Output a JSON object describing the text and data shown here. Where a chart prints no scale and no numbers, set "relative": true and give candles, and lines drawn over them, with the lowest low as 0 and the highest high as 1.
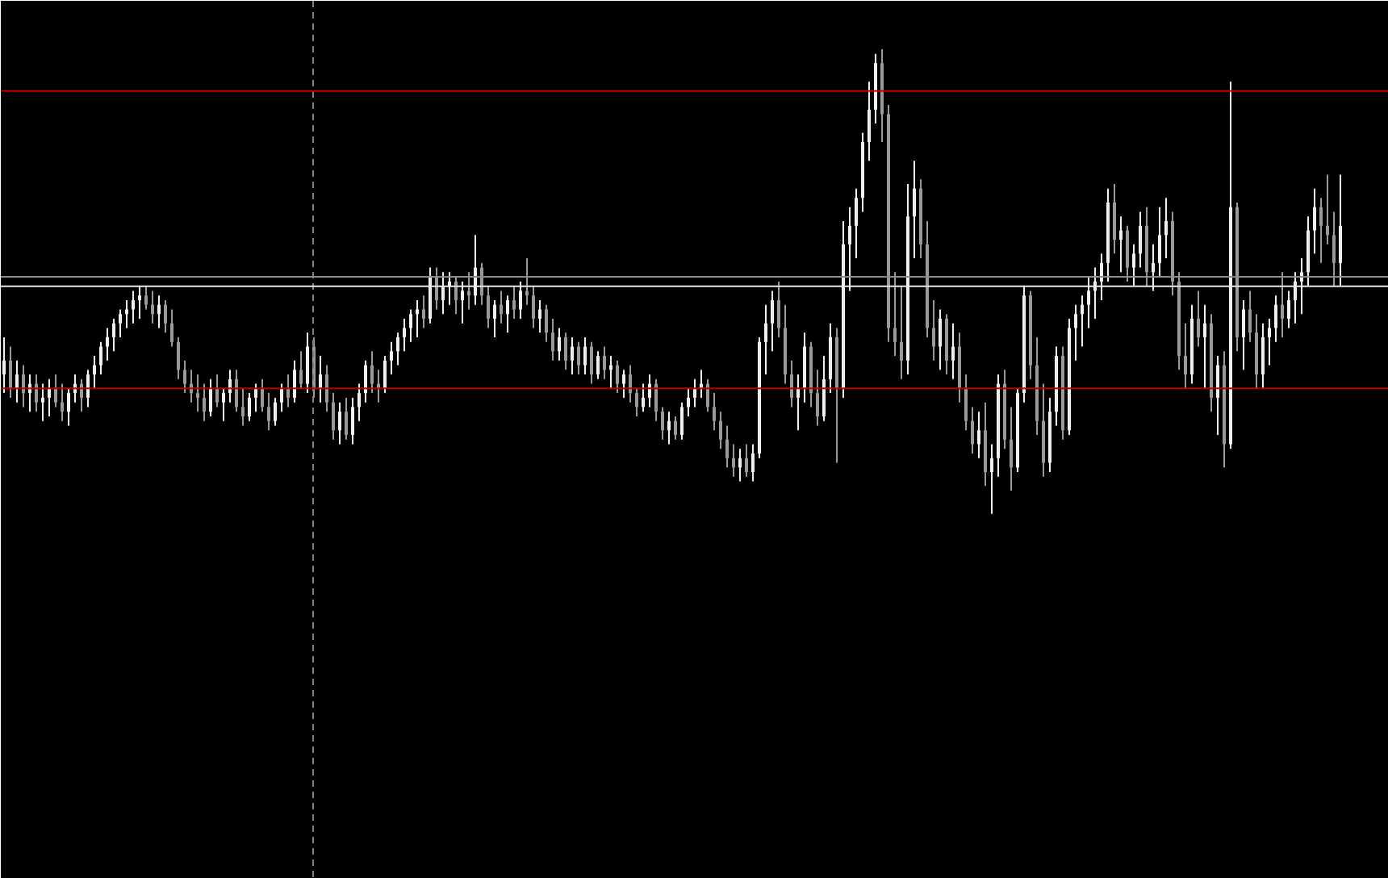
{
  "chart_data": {
    "type": "candlestick",
    "relative": true,
    "grid": false,
    "colors": [
      "#f0f0f0",
      "#9a9a9a",
      "#f0f0f0",
      "#9a9a9a",
      "#f0f0f0",
      "#9a9a9a",
      "#f0f0f0",
      "#f0f0f0",
      "#9a9a9a",
      "#9a9a9a",
      "#f0f0f0",
      "#f0f0f0",
      "#9a9a9a",
      "#f0f0f0",
      "#f0f0f0",
      "#f0f0f0",
      "#f0f0f0",
      "#f0f0f0",
      "#f0f0f0",
      "#f0f0f0",
      "#f0f0f0",
      "#f0f0f0",
      "#9a9a9a",
      "#9a9a9a",
      "#f0f0f0",
      "#9a9a9a",
      "#9a9a9a",
      "#9a9a9a",
      "#9a9a9a",
      "#9a9a9a",
      "#9a9a9a",
      "#9a9a9a",
      "#f0f0f0",
      "#9a9a9a",
      "#f0f0f0",
      "#f0f0f0",
      "#9a9a9a",
      "#9a9a9a",
      "#f0f0f0",
      "#f0f0f0",
      "#9a9a9a",
      "#9a9a9a",
      "#f0f0f0",
      "#f0f0f0",
      "#9a9a9a",
      "#f0f0f0",
      "#9a9a9a",
      "#f0f0f0",
      "#9a9a9a",
      "#f0f0f0",
      "#9a9a9a",
      "#9a9a9a",
      "#f0f0f0",
      "#9a9a9a",
      "#f0f0f0",
      "#f0f0f0",
      "#f0f0f0",
      "#9a9a9a",
      "#9a9a9a",
      "#f0f0f0",
      "#f0f0f0",
      "#f0f0f0",
      "#f0f0f0",
      "#f0f0f0",
      "#f0f0f0",
      "#9a9a9a",
      "#f0f0f0",
      "#9a9a9a",
      "#f0f0f0",
      "#f0f0f0",
      "#9a9a9a",
      "#f0f0f0",
      "#9a9a9a",
      "#f0f0f0",
      "#9a9a9a",
      "#9a9a9a",
      "#f0f0f0",
      "#9a9a9a",
      "#f0f0f0",
      "#9a9a9a",
      "#f0f0f0",
      "#9a9a9a",
      "#9a9a9a",
      "#f0f0f0",
      "#9a9a9a",
      "#9a9a9a",
      "#f0f0f0",
      "#9a9a9a",
      "#f0f0f0",
      "#9a9a9a",
      "#f0f0f0",
      "#9a9a9a",
      "#f0f0f0",
      "#9a9a9a",
      "#f0f0f0",
      "#9a9a9a",
      "#f0f0f0",
      "#9a9a9a",
      "#9a9a9a",
      "#f0f0f0",
      "#f0f0f0",
      "#9a9a9a",
      "#9a9a9a",
      "#f0f0f0",
      "#9a9a9a",
      "#f0f0f0",
      "#f0f0f0",
      "#f0f0f0",
      "#f0f0f0",
      "#9a9a9a",
      "#9a9a9a",
      "#9a9a9a",
      "#9a9a9a",
      "#9a9a9a",
      "#f0f0f0",
      "#9a9a9a",
      "#f0f0f0",
      "#f0f0f0",
      "#f0f0f0",
      "#f0f0f0",
      "#9a9a9a",
      "#9a9a9a",
      "#9a9a9a",
      "#f0f0f0",
      "#f0f0f0",
      "#9a9a9a",
      "#9a9a9a",
      "#f0f0f0",
      "#f0f0f0",
      "#9a9a9a",
      "#f0f0f0",
      "#f0f0f0",
      "#f0f0f0",
      "#f0f0f0",
      "#f0f0f0",
      "#f0f0f0",
      "#9a9a9a",
      "#9a9a9a",
      "#9a9a9a",
      "#9a9a9a",
      "#f0f0f0",
      "#f0f0f0",
      "#9a9a9a",
      "#9a9a9a",
      "#9a9a9a",
      "#f0f0f0",
      "#9a9a9a",
      "#f0f0f0",
      "#9a9a9a",
      "#9a9a9a",
      "#9a9a9a",
      "#f0f0f0",
      "#9a9a9a",
      "#f0f0f0",
      "#f0f0f0",
      "#9a9a9a",
      "#9a9a9a",
      "#f0f0f0",
      "#f0f0f0",
      "#9a9a9a",
      "#9a9a9a",
      "#9a9a9a",
      "#f0f0f0",
      "#f0f0f0",
      "#9a9a9a",
      "#f0f0f0",
      "#f0f0f0",
      "#f0f0f0",
      "#f0f0f0",
      "#f0f0f0",
      "#f0f0f0",
      "#f0f0f0",
      "#9a9a9a",
      "#f0f0f0",
      "#9a9a9a",
      "#f0f0f0",
      "#f0f0f0",
      "#9a9a9a",
      "#f0f0f0",
      "#f0f0f0",
      "#f0f0f0",
      "#9a9a9a",
      "#9a9a9a",
      "#9a9a9a",
      "#f0f0f0",
      "#9a9a9a",
      "#f0f0f0",
      "#9a9a9a",
      "#f0f0f0",
      "#9a9a9a",
      "#f0f0f0",
      "#9a9a9a",
      "#f0f0f0",
      "#9a9a9a",
      "#9a9a9a",
      "#f0f0f0",
      "#f0f0f0",
      "#f0f0f0",
      "#9a9a9a",
      "#f0f0f0",
      "#f0f0f0",
      "#f0f0f0",
      "#f0f0f0",
      "#f0f0f0",
      "#9a9a9a",
      "#9a9a9a",
      "#9a9a9a",
      "#f0f0f0"
    ],
    "categories": [
      null,
      null,
      null,
      null,
      null,
      null,
      null,
      null,
      null,
      null,
      null,
      null,
      null,
      null,
      null,
      null,
      null,
      null,
      null,
      null,
      null,
      null,
      null,
      null,
      null,
      null,
      null,
      null,
      null,
      null,
      null,
      null,
      null,
      null,
      null,
      null,
      null,
      null,
      null,
      null,
      null,
      null,
      null,
      null,
      null,
      null,
      null,
      null,
      null,
      null,
      null,
      null,
      null,
      null,
      null,
      null,
      null,
      null,
      null,
      null,
      null,
      null,
      null,
      null,
      null,
      null,
      null,
      null,
      null,
      null,
      null,
      null,
      null,
      null,
      null,
      null,
      null,
      null,
      null,
      null,
      null,
      null,
      null,
      null,
      null,
      null,
      null,
      null,
      null,
      null,
      null,
      null,
      null,
      null,
      null,
      null,
      null,
      null,
      null,
      null,
      null,
      null,
      null,
      null,
      null,
      null,
      null,
      null,
      null,
      null,
      null,
      null,
      null,
      null,
      null,
      null,
      null,
      null,
      null,
      null,
      null,
      null,
      null,
      null,
      null,
      null,
      null,
      null,
      null,
      null,
      null,
      null,
      null,
      null,
      null,
      null,
      null,
      null,
      null,
      null,
      null,
      null,
      null,
      null,
      null,
      null,
      null,
      null,
      null,
      null,
      null,
      null,
      null,
      null,
      null,
      null,
      null,
      null,
      null,
      null,
      null,
      null,
      null,
      null,
      null,
      null,
      null,
      null,
      null,
      null,
      null,
      null,
      null,
      null,
      null,
      null,
      null,
      null,
      null,
      null,
      null,
      null,
      null,
      null,
      null,
      null,
      null,
      null,
      null,
      null,
      null,
      null,
      null,
      null,
      null,
      null,
      null,
      null,
      null,
      null,
      null,
      null,
      null,
      null,
      null,
      null,
      null,
      null
    ],
    "ohlc": [
      [
        0.3,
        0.38,
        0.26,
        0.33
      ],
      [
        0.33,
        0.36,
        0.25,
        0.27
      ],
      [
        0.27,
        0.33,
        0.24,
        0.3
      ],
      [
        0.3,
        0.32,
        0.23,
        0.26
      ],
      [
        0.26,
        0.3,
        0.22,
        0.28
      ],
      [
        0.28,
        0.3,
        0.22,
        0.24
      ],
      [
        0.24,
        0.28,
        0.2,
        0.25
      ],
      [
        0.25,
        0.29,
        0.21,
        0.27
      ],
      [
        0.27,
        0.3,
        0.23,
        0.24
      ],
      [
        0.24,
        0.28,
        0.2,
        0.22
      ],
      [
        0.22,
        0.27,
        0.19,
        0.26
      ],
      [
        0.26,
        0.3,
        0.24,
        0.28
      ],
      [
        0.28,
        0.29,
        0.22,
        0.25
      ],
      [
        0.25,
        0.31,
        0.23,
        0.3
      ],
      [
        0.3,
        0.34,
        0.27,
        0.32
      ],
      [
        0.32,
        0.37,
        0.3,
        0.36
      ],
      [
        0.36,
        0.4,
        0.33,
        0.38
      ],
      [
        0.38,
        0.42,
        0.35,
        0.41
      ],
      [
        0.41,
        0.44,
        0.38,
        0.43
      ],
      [
        0.43,
        0.46,
        0.4,
        0.44
      ],
      [
        0.44,
        0.48,
        0.41,
        0.46
      ],
      [
        0.46,
        0.49,
        0.42,
        0.47
      ],
      [
        0.47,
        0.49,
        0.44,
        0.45
      ],
      [
        0.45,
        0.48,
        0.41,
        0.43
      ],
      [
        0.43,
        0.47,
        0.4,
        0.45
      ],
      [
        0.45,
        0.46,
        0.39,
        0.41
      ],
      [
        0.41,
        0.44,
        0.36,
        0.37
      ],
      [
        0.37,
        0.38,
        0.29,
        0.31
      ],
      [
        0.31,
        0.33,
        0.26,
        0.28
      ],
      [
        0.28,
        0.31,
        0.24,
        0.26
      ],
      [
        0.26,
        0.3,
        0.22,
        0.25
      ],
      [
        0.25,
        0.28,
        0.2,
        0.22
      ],
      [
        0.22,
        0.29,
        0.21,
        0.27
      ],
      [
        0.27,
        0.3,
        0.23,
        0.24
      ],
      [
        0.24,
        0.27,
        0.2,
        0.26
      ],
      [
        0.26,
        0.31,
        0.24,
        0.29
      ],
      [
        0.29,
        0.31,
        0.22,
        0.23
      ],
      [
        0.23,
        0.27,
        0.19,
        0.21
      ],
      [
        0.21,
        0.26,
        0.2,
        0.25
      ],
      [
        0.25,
        0.28,
        0.22,
        0.27
      ],
      [
        0.27,
        0.29,
        0.22,
        0.23
      ],
      [
        0.23,
        0.26,
        0.18,
        0.2
      ],
      [
        0.2,
        0.25,
        0.19,
        0.24
      ],
      [
        0.24,
        0.28,
        0.22,
        0.27
      ],
      [
        0.27,
        0.3,
        0.23,
        0.25
      ],
      [
        0.25,
        0.33,
        0.24,
        0.31
      ],
      [
        0.31,
        0.35,
        0.27,
        0.28
      ],
      [
        0.28,
        0.39,
        0.26,
        0.36
      ],
      [
        0.36,
        0.38,
        0.25,
        0.27
      ],
      [
        0.27,
        0.34,
        0.24,
        0.3
      ],
      [
        0.3,
        0.32,
        0.22,
        0.24
      ],
      [
        0.24,
        0.26,
        0.16,
        0.18
      ],
      [
        0.18,
        0.24,
        0.15,
        0.22
      ],
      [
        0.22,
        0.25,
        0.16,
        0.17
      ],
      [
        0.17,
        0.25,
        0.15,
        0.23
      ],
      [
        0.23,
        0.28,
        0.2,
        0.26
      ],
      [
        0.26,
        0.33,
        0.24,
        0.32
      ],
      [
        0.32,
        0.35,
        0.26,
        0.28
      ],
      [
        0.28,
        0.31,
        0.24,
        0.27
      ],
      [
        0.27,
        0.34,
        0.26,
        0.33
      ],
      [
        0.33,
        0.37,
        0.3,
        0.35
      ],
      [
        0.35,
        0.39,
        0.32,
        0.38
      ],
      [
        0.38,
        0.42,
        0.35,
        0.4
      ],
      [
        0.4,
        0.44,
        0.37,
        0.43
      ],
      [
        0.43,
        0.46,
        0.38,
        0.44
      ],
      [
        0.44,
        0.47,
        0.4,
        0.42
      ],
      [
        0.42,
        0.53,
        0.41,
        0.51
      ],
      [
        0.51,
        0.53,
        0.44,
        0.46
      ],
      [
        0.46,
        0.52,
        0.43,
        0.49
      ],
      [
        0.49,
        0.52,
        0.45,
        0.5
      ],
      [
        0.5,
        0.51,
        0.43,
        0.46
      ],
      [
        0.46,
        0.5,
        0.41,
        0.48
      ],
      [
        0.48,
        0.52,
        0.44,
        0.47
      ],
      [
        0.47,
        0.6,
        0.45,
        0.53
      ],
      [
        0.53,
        0.54,
        0.45,
        0.47
      ],
      [
        0.47,
        0.49,
        0.4,
        0.42
      ],
      [
        0.42,
        0.46,
        0.38,
        0.45
      ],
      [
        0.45,
        0.48,
        0.41,
        0.43
      ],
      [
        0.43,
        0.47,
        0.39,
        0.46
      ],
      [
        0.46,
        0.49,
        0.42,
        0.44
      ],
      [
        0.44,
        0.5,
        0.42,
        0.48
      ],
      [
        0.48,
        0.55,
        0.45,
        0.47
      ],
      [
        0.47,
        0.49,
        0.4,
        0.42
      ],
      [
        0.42,
        0.46,
        0.39,
        0.44
      ],
      [
        0.44,
        0.45,
        0.37,
        0.39
      ],
      [
        0.39,
        0.42,
        0.33,
        0.35
      ],
      [
        0.35,
        0.4,
        0.33,
        0.38
      ],
      [
        0.38,
        0.39,
        0.31,
        0.33
      ],
      [
        0.33,
        0.38,
        0.3,
        0.36
      ],
      [
        0.36,
        0.37,
        0.3,
        0.32
      ],
      [
        0.32,
        0.38,
        0.3,
        0.36
      ],
      [
        0.36,
        0.37,
        0.28,
        0.3
      ],
      [
        0.3,
        0.35,
        0.29,
        0.34
      ],
      [
        0.34,
        0.36,
        0.29,
        0.31
      ],
      [
        0.31,
        0.34,
        0.27,
        0.32
      ],
      [
        0.32,
        0.33,
        0.26,
        0.28
      ],
      [
        0.28,
        0.31,
        0.25,
        0.3
      ],
      [
        0.3,
        0.32,
        0.24,
        0.26
      ],
      [
        0.26,
        0.27,
        0.21,
        0.23
      ],
      [
        0.23,
        0.28,
        0.22,
        0.25
      ],
      [
        0.25,
        0.3,
        0.23,
        0.28
      ],
      [
        0.28,
        0.29,
        0.2,
        0.22
      ],
      [
        0.22,
        0.23,
        0.16,
        0.18
      ],
      [
        0.18,
        0.22,
        0.15,
        0.2
      ],
      [
        0.2,
        0.21,
        0.16,
        0.17
      ],
      [
        0.17,
        0.24,
        0.16,
        0.23
      ],
      [
        0.23,
        0.27,
        0.21,
        0.25
      ],
      [
        0.25,
        0.29,
        0.23,
        0.27
      ],
      [
        0.27,
        0.31,
        0.25,
        0.28
      ],
      [
        0.28,
        0.29,
        0.22,
        0.23
      ],
      [
        0.23,
        0.26,
        0.18,
        0.2
      ],
      [
        0.2,
        0.22,
        0.14,
        0.16
      ],
      [
        0.16,
        0.19,
        0.1,
        0.12
      ],
      [
        0.12,
        0.15,
        0.08,
        0.1
      ],
      [
        0.1,
        0.14,
        0.07,
        0.12
      ],
      [
        0.12,
        0.15,
        0.08,
        0.09
      ],
      [
        0.09,
        0.15,
        0.07,
        0.13
      ],
      [
        0.13,
        0.38,
        0.12,
        0.37
      ],
      [
        0.37,
        0.45,
        0.3,
        0.41
      ],
      [
        0.41,
        0.48,
        0.35,
        0.46
      ],
      [
        0.46,
        0.5,
        0.38,
        0.4
      ],
      [
        0.4,
        0.45,
        0.28,
        0.3
      ],
      [
        0.3,
        0.33,
        0.23,
        0.25
      ],
      [
        0.25,
        0.3,
        0.18,
        0.27
      ],
      [
        0.27,
        0.39,
        0.24,
        0.36
      ],
      [
        0.36,
        0.37,
        0.23,
        0.26
      ],
      [
        0.26,
        0.31,
        0.19,
        0.21
      ],
      [
        0.21,
        0.34,
        0.2,
        0.29
      ],
      [
        0.29,
        0.41,
        0.26,
        0.38
      ],
      [
        0.38,
        0.4,
        0.11,
        0.27
      ],
      [
        0.27,
        0.63,
        0.25,
        0.58
      ],
      [
        0.58,
        0.66,
        0.48,
        0.62
      ],
      [
        0.62,
        0.7,
        0.55,
        0.68
      ],
      [
        0.68,
        0.82,
        0.65,
        0.8
      ],
      [
        0.8,
        0.93,
        0.76,
        0.87
      ],
      [
        0.87,
        0.99,
        0.84,
        0.97
      ],
      [
        0.97,
        1.0,
        0.8,
        0.86
      ],
      [
        0.86,
        0.88,
        0.37,
        0.4
      ],
      [
        0.4,
        0.52,
        0.34,
        0.37
      ],
      [
        0.37,
        0.49,
        0.29,
        0.33
      ],
      [
        0.33,
        0.71,
        0.3,
        0.64
      ],
      [
        0.64,
        0.76,
        0.55,
        0.7
      ],
      [
        0.7,
        0.72,
        0.55,
        0.58
      ],
      [
        0.58,
        0.63,
        0.38,
        0.4
      ],
      [
        0.4,
        0.46,
        0.33,
        0.36
      ],
      [
        0.36,
        0.44,
        0.31,
        0.42
      ],
      [
        0.42,
        0.43,
        0.3,
        0.33
      ],
      [
        0.33,
        0.41,
        0.29,
        0.36
      ],
      [
        0.36,
        0.39,
        0.24,
        0.27
      ],
      [
        0.27,
        0.3,
        0.18,
        0.2
      ],
      [
        0.2,
        0.23,
        0.13,
        0.15
      ],
      [
        0.15,
        0.22,
        0.12,
        0.18
      ],
      [
        0.18,
        0.24,
        0.06,
        0.09
      ],
      [
        0.09,
        0.15,
        0.0,
        0.12
      ],
      [
        0.12,
        0.3,
        0.08,
        0.28
      ],
      [
        0.28,
        0.31,
        0.14,
        0.16
      ],
      [
        0.16,
        0.23,
        0.05,
        0.1
      ],
      [
        0.1,
        0.27,
        0.09,
        0.26
      ],
      [
        0.26,
        0.49,
        0.24,
        0.47
      ],
      [
        0.47,
        0.48,
        0.29,
        0.32
      ],
      [
        0.32,
        0.38,
        0.17,
        0.2
      ],
      [
        0.2,
        0.28,
        0.08,
        0.11
      ],
      [
        0.11,
        0.25,
        0.09,
        0.22
      ],
      [
        0.22,
        0.36,
        0.19,
        0.34
      ],
      [
        0.34,
        0.36,
        0.16,
        0.18
      ],
      [
        0.18,
        0.42,
        0.17,
        0.4
      ],
      [
        0.4,
        0.45,
        0.33,
        0.43
      ],
      [
        0.43,
        0.47,
        0.36,
        0.45
      ],
      [
        0.45,
        0.51,
        0.4,
        0.48
      ],
      [
        0.48,
        0.53,
        0.42,
        0.5
      ],
      [
        0.5,
        0.56,
        0.46,
        0.54
      ],
      [
        0.54,
        0.7,
        0.5,
        0.67
      ],
      [
        0.67,
        0.71,
        0.56,
        0.59
      ],
      [
        0.59,
        0.64,
        0.52,
        0.61
      ],
      [
        0.61,
        0.62,
        0.5,
        0.53
      ],
      [
        0.53,
        0.58,
        0.49,
        0.56
      ],
      [
        0.56,
        0.65,
        0.53,
        0.62
      ],
      [
        0.62,
        0.66,
        0.49,
        0.52
      ],
      [
        0.52,
        0.58,
        0.48,
        0.54
      ],
      [
        0.54,
        0.66,
        0.51,
        0.6
      ],
      [
        0.6,
        0.68,
        0.55,
        0.63
      ],
      [
        0.63,
        0.65,
        0.47,
        0.5
      ],
      [
        0.5,
        0.52,
        0.31,
        0.34
      ],
      [
        0.34,
        0.41,
        0.27,
        0.3
      ],
      [
        0.3,
        0.45,
        0.28,
        0.42
      ],
      [
        0.42,
        0.48,
        0.36,
        0.38
      ],
      [
        0.38,
        0.45,
        0.27,
        0.41
      ],
      [
        0.41,
        0.43,
        0.22,
        0.25
      ],
      [
        0.25,
        0.34,
        0.17,
        0.32
      ],
      [
        0.32,
        0.35,
        0.1,
        0.15
      ],
      [
        0.15,
        0.93,
        0.14,
        0.66
      ],
      [
        0.66,
        0.67,
        0.35,
        0.38
      ],
      [
        0.38,
        0.46,
        0.31,
        0.44
      ],
      [
        0.44,
        0.48,
        0.37,
        0.39
      ],
      [
        0.39,
        0.43,
        0.27,
        0.3
      ],
      [
        0.3,
        0.41,
        0.27,
        0.38
      ],
      [
        0.38,
        0.42,
        0.32,
        0.4
      ],
      [
        0.4,
        0.47,
        0.37,
        0.45
      ],
      [
        0.45,
        0.52,
        0.38,
        0.42
      ],
      [
        0.42,
        0.48,
        0.4,
        0.46
      ],
      [
        0.46,
        0.52,
        0.41,
        0.5
      ],
      [
        0.5,
        0.55,
        0.43,
        0.52
      ],
      [
        0.52,
        0.64,
        0.49,
        0.61
      ],
      [
        0.61,
        0.7,
        0.56,
        0.66
      ],
      [
        0.66,
        0.68,
        0.54,
        0.62
      ],
      [
        0.62,
        0.73,
        0.58,
        0.6
      ],
      [
        0.6,
        0.65,
        0.49,
        0.54
      ],
      [
        0.54,
        0.73,
        0.49,
        0.62
      ]
    ],
    "ref_lines": [
      {
        "axis": "y",
        "value": 0.91,
        "color": "#c00000",
        "line_style": "solid"
      },
      {
        "axis": "y",
        "value": 0.51,
        "color": "#8c8c8c",
        "line_style": "solid"
      },
      {
        "axis": "y",
        "value": 0.49,
        "color": "#e8e8e8",
        "line_style": "solid"
      },
      {
        "axis": "y",
        "value": 0.27,
        "color": "#c00000",
        "line_style": "solid"
      }
    ]
  }
}
